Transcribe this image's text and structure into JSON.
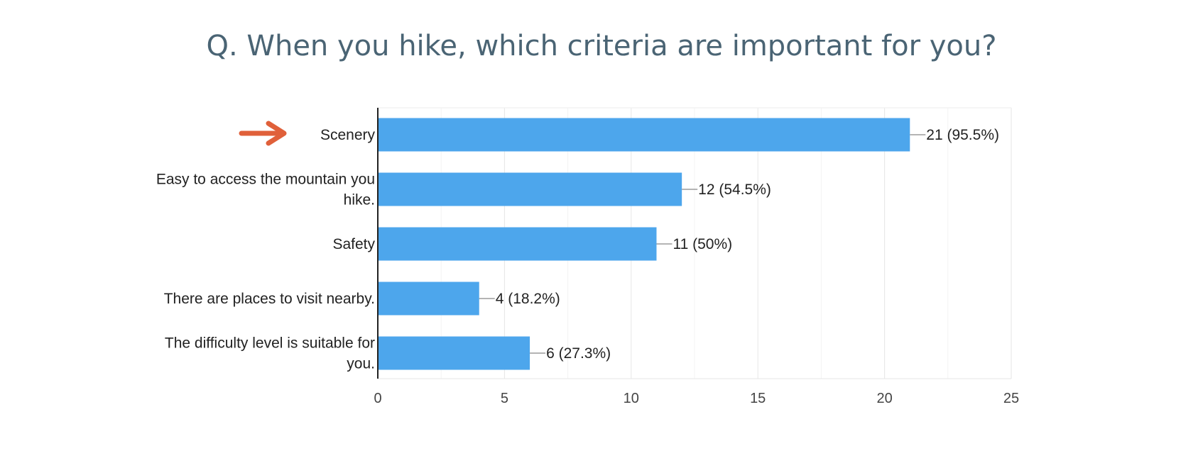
{
  "colors": {
    "bar": "#4da6ec",
    "title": "#4a6474",
    "arrow": "#e0603a",
    "grid": "#eeeeee",
    "axis": "#222222",
    "text": "#222222"
  },
  "chart_data": {
    "type": "bar",
    "orientation": "horizontal",
    "title": "Q. When you hike, which criteria are important for you?",
    "categories": [
      "Scenery",
      "Easy to access the mountain you hike.",
      "Safety",
      "There are places to visit nearby.",
      "The difficulty level is suitable for you."
    ],
    "values": [
      21,
      12,
      11,
      4,
      6
    ],
    "data_labels": [
      "21 (95.5%)",
      "12 (54.5%)",
      "11 (50%)",
      "4 (18.2%)",
      "6 (27.3%)"
    ],
    "xlim": [
      0,
      25
    ],
    "xticks": [
      0,
      5,
      10,
      15,
      20,
      25
    ],
    "grid": true,
    "highlight": {
      "category": "Scenery",
      "icon": "arrow-right-icon"
    }
  }
}
